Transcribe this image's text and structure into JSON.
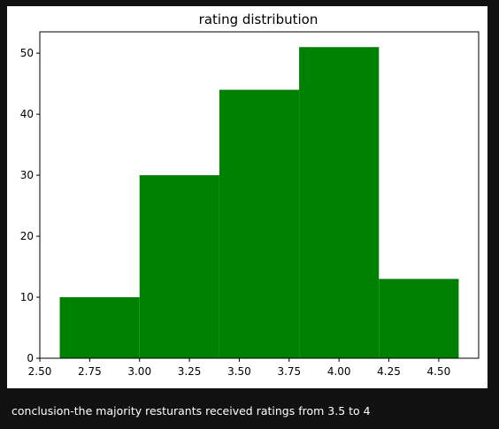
{
  "chart_data": {
    "type": "bar",
    "title": "rating distribution",
    "xlabel": "",
    "ylabel": "",
    "bins": [
      {
        "x0": 2.6,
        "x1": 3.0,
        "value": 10
      },
      {
        "x0": 3.0,
        "x1": 3.4,
        "value": 30
      },
      {
        "x0": 3.4,
        "x1": 3.8,
        "value": 44
      },
      {
        "x0": 3.8,
        "x1": 4.2,
        "value": 51
      },
      {
        "x0": 4.2,
        "x1": 4.6,
        "value": 13
      }
    ],
    "xlim": [
      2.5,
      4.7
    ],
    "ylim": [
      0,
      53.5
    ],
    "xticks": [
      "2.50",
      "2.75",
      "3.00",
      "3.25",
      "3.50",
      "3.75",
      "4.00",
      "4.25",
      "4.50"
    ],
    "yticks": [
      "0",
      "10",
      "20",
      "30",
      "40",
      "50"
    ],
    "bar_color": "#008000",
    "grid": false
  },
  "caption": "conclusion-the majority resturants received ratings from 3.5 to 4"
}
